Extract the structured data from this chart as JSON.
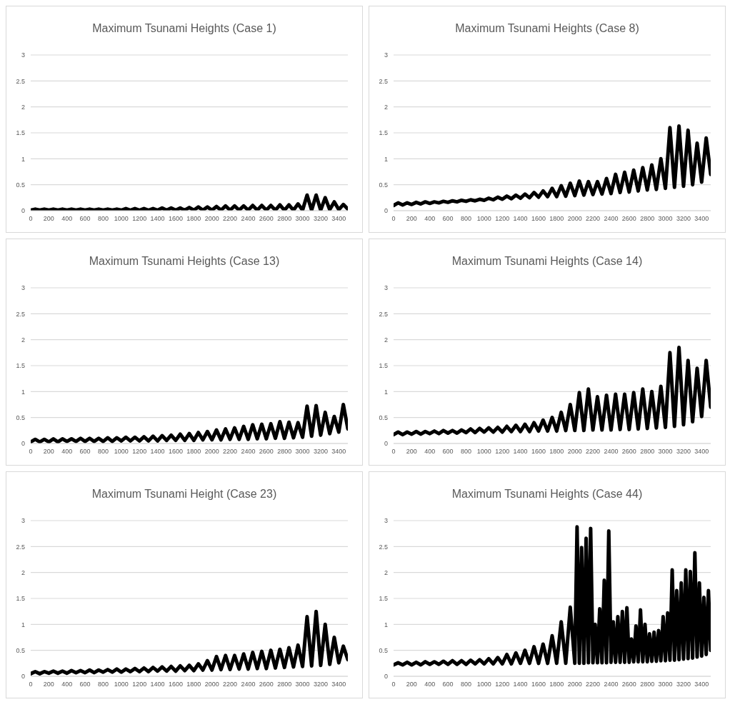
{
  "chart_data": [
    {
      "type": "line",
      "title": "Maximum Tsunami Heights (Case 1)",
      "grid": "y",
      "xlim": [
        0,
        3500
      ],
      "xticks": [
        0,
        200,
        400,
        600,
        800,
        1000,
        1200,
        1400,
        1600,
        1800,
        2000,
        2200,
        2400,
        2600,
        2800,
        3000,
        3200,
        3400
      ],
      "ylim": [
        0,
        3
      ],
      "yticks": [
        0,
        0.5,
        1,
        1.5,
        2,
        2.5,
        3
      ],
      "x": [
        0,
        50,
        100,
        150,
        200,
        250,
        300,
        350,
        400,
        450,
        500,
        550,
        600,
        650,
        700,
        750,
        800,
        850,
        900,
        950,
        1000,
        1050,
        1100,
        1150,
        1200,
        1250,
        1300,
        1350,
        1400,
        1450,
        1500,
        1550,
        1600,
        1650,
        1700,
        1750,
        1800,
        1850,
        1900,
        1950,
        2000,
        2050,
        2100,
        2150,
        2200,
        2250,
        2300,
        2350,
        2400,
        2450,
        2500,
        2550,
        2600,
        2650,
        2700,
        2750,
        2800,
        2850,
        2900,
        2950,
        3000,
        3050,
        3100,
        3150,
        3200,
        3250,
        3300,
        3350,
        3400,
        3450,
        3500
      ],
      "series": [
        {
          "color": "#000000",
          "values": [
            0.01,
            0.03,
            0.01,
            0.03,
            0.01,
            0.03,
            0.01,
            0.03,
            0.01,
            0.03,
            0.01,
            0.03,
            0.01,
            0.03,
            0.01,
            0.03,
            0.01,
            0.03,
            0.01,
            0.03,
            0.01,
            0.04,
            0.01,
            0.04,
            0.01,
            0.04,
            0.01,
            0.04,
            0.01,
            0.05,
            0.01,
            0.05,
            0.01,
            0.05,
            0.01,
            0.06,
            0.01,
            0.07,
            0.01,
            0.07,
            0.01,
            0.08,
            0.01,
            0.09,
            0.01,
            0.09,
            0.01,
            0.09,
            0.01,
            0.1,
            0.01,
            0.1,
            0.01,
            0.1,
            0.01,
            0.11,
            0.01,
            0.11,
            0.01,
            0.13,
            0.01,
            0.3,
            0.01,
            0.3,
            0.01,
            0.25,
            0.02,
            0.17,
            0.02,
            0.12,
            0.03
          ]
        }
      ]
    },
    {
      "type": "line",
      "title": "Maximum Tsunami Heights (Case 8)",
      "grid": "y",
      "xlim": [
        0,
        3500
      ],
      "xticks": [
        0,
        200,
        400,
        600,
        800,
        1000,
        1200,
        1400,
        1600,
        1800,
        2000,
        2200,
        2400,
        2600,
        2800,
        3000,
        3200,
        3400
      ],
      "ylim": [
        0,
        3
      ],
      "yticks": [
        0,
        0.5,
        1,
        1.5,
        2,
        2.5,
        3
      ],
      "x": [
        0,
        50,
        100,
        150,
        200,
        250,
        300,
        350,
        400,
        450,
        500,
        550,
        600,
        650,
        700,
        750,
        800,
        850,
        900,
        950,
        1000,
        1050,
        1100,
        1150,
        1200,
        1250,
        1300,
        1350,
        1400,
        1450,
        1500,
        1550,
        1600,
        1650,
        1700,
        1750,
        1800,
        1850,
        1900,
        1950,
        2000,
        2050,
        2100,
        2150,
        2200,
        2250,
        2300,
        2350,
        2400,
        2450,
        2500,
        2550,
        2600,
        2650,
        2700,
        2750,
        2800,
        2850,
        2900,
        2950,
        3000,
        3050,
        3100,
        3150,
        3200,
        3250,
        3300,
        3350,
        3400,
        3450,
        3500
      ],
      "series": [
        {
          "color": "#000000",
          "values": [
            0.1,
            0.15,
            0.11,
            0.15,
            0.12,
            0.16,
            0.13,
            0.17,
            0.14,
            0.17,
            0.15,
            0.18,
            0.16,
            0.19,
            0.17,
            0.2,
            0.18,
            0.21,
            0.19,
            0.22,
            0.2,
            0.24,
            0.21,
            0.26,
            0.22,
            0.28,
            0.23,
            0.3,
            0.24,
            0.32,
            0.25,
            0.35,
            0.26,
            0.38,
            0.27,
            0.43,
            0.27,
            0.48,
            0.28,
            0.53,
            0.29,
            0.57,
            0.3,
            0.56,
            0.31,
            0.56,
            0.32,
            0.62,
            0.33,
            0.7,
            0.35,
            0.74,
            0.36,
            0.78,
            0.38,
            0.83,
            0.4,
            0.88,
            0.41,
            1.0,
            0.43,
            1.6,
            0.45,
            1.63,
            0.47,
            1.55,
            0.5,
            1.3,
            0.55,
            1.4,
            0.7
          ]
        }
      ]
    },
    {
      "type": "line",
      "title": "Maximum Tsunami Heights (Case 13)",
      "grid": "y",
      "xlim": [
        0,
        3500
      ],
      "xticks": [
        0,
        200,
        400,
        600,
        800,
        1000,
        1200,
        1400,
        1600,
        1800,
        2000,
        2200,
        2400,
        2600,
        2800,
        3000,
        3200,
        3400
      ],
      "ylim": [
        0,
        3
      ],
      "yticks": [
        0,
        0.5,
        1,
        1.5,
        2,
        2.5,
        3
      ],
      "x": [
        0,
        50,
        100,
        150,
        200,
        250,
        300,
        350,
        400,
        450,
        500,
        550,
        600,
        650,
        700,
        750,
        800,
        850,
        900,
        950,
        1000,
        1050,
        1100,
        1150,
        1200,
        1250,
        1300,
        1350,
        1400,
        1450,
        1500,
        1550,
        1600,
        1650,
        1700,
        1750,
        1800,
        1850,
        1900,
        1950,
        2000,
        2050,
        2100,
        2150,
        2200,
        2250,
        2300,
        2350,
        2400,
        2450,
        2500,
        2550,
        2600,
        2650,
        2700,
        2750,
        2800,
        2850,
        2900,
        2950,
        3000,
        3050,
        3100,
        3150,
        3200,
        3250,
        3300,
        3350,
        3400,
        3450,
        3500
      ],
      "series": [
        {
          "color": "#000000",
          "values": [
            0.03,
            0.08,
            0.03,
            0.08,
            0.03,
            0.09,
            0.03,
            0.09,
            0.04,
            0.09,
            0.04,
            0.1,
            0.04,
            0.1,
            0.04,
            0.1,
            0.04,
            0.11,
            0.04,
            0.11,
            0.05,
            0.12,
            0.05,
            0.12,
            0.05,
            0.13,
            0.05,
            0.14,
            0.05,
            0.15,
            0.06,
            0.16,
            0.06,
            0.18,
            0.06,
            0.19,
            0.06,
            0.21,
            0.07,
            0.23,
            0.07,
            0.26,
            0.07,
            0.28,
            0.08,
            0.3,
            0.08,
            0.33,
            0.08,
            0.36,
            0.09,
            0.37,
            0.09,
            0.38,
            0.1,
            0.42,
            0.1,
            0.41,
            0.11,
            0.4,
            0.12,
            0.72,
            0.14,
            0.73,
            0.16,
            0.6,
            0.19,
            0.52,
            0.22,
            0.75,
            0.28
          ]
        }
      ]
    },
    {
      "type": "line",
      "title": "Maximum Tsunami Heights (Case 14)",
      "grid": "y",
      "xlim": [
        0,
        3500
      ],
      "xticks": [
        0,
        200,
        400,
        600,
        800,
        1000,
        1200,
        1400,
        1600,
        1800,
        2000,
        2200,
        2400,
        2600,
        2800,
        3000,
        3200,
        3400
      ],
      "ylim": [
        0,
        3
      ],
      "yticks": [
        0,
        0.5,
        1,
        1.5,
        2,
        2.5,
        3
      ],
      "x": [
        0,
        50,
        100,
        150,
        200,
        250,
        300,
        350,
        400,
        450,
        500,
        550,
        600,
        650,
        700,
        750,
        800,
        850,
        900,
        950,
        1000,
        1050,
        1100,
        1150,
        1200,
        1250,
        1300,
        1350,
        1400,
        1450,
        1500,
        1550,
        1600,
        1650,
        1700,
        1750,
        1800,
        1850,
        1900,
        1950,
        2000,
        2050,
        2100,
        2150,
        2200,
        2250,
        2300,
        2350,
        2400,
        2450,
        2500,
        2550,
        2600,
        2650,
        2700,
        2750,
        2800,
        2850,
        2900,
        2950,
        3000,
        3050,
        3100,
        3150,
        3200,
        3250,
        3300,
        3350,
        3400,
        3450,
        3500
      ],
      "series": [
        {
          "color": "#000000",
          "values": [
            0.17,
            0.22,
            0.17,
            0.22,
            0.18,
            0.23,
            0.18,
            0.23,
            0.19,
            0.24,
            0.19,
            0.25,
            0.2,
            0.25,
            0.2,
            0.26,
            0.21,
            0.28,
            0.21,
            0.29,
            0.22,
            0.3,
            0.22,
            0.31,
            0.22,
            0.33,
            0.23,
            0.35,
            0.23,
            0.37,
            0.23,
            0.4,
            0.24,
            0.45,
            0.24,
            0.5,
            0.24,
            0.6,
            0.25,
            0.75,
            0.25,
            0.98,
            0.25,
            1.05,
            0.26,
            0.9,
            0.26,
            0.93,
            0.26,
            0.95,
            0.27,
            0.95,
            0.27,
            0.98,
            0.28,
            1.05,
            0.29,
            1.0,
            0.3,
            1.1,
            0.31,
            1.75,
            0.33,
            1.85,
            0.36,
            1.6,
            0.42,
            1.45,
            0.52,
            1.6,
            0.7
          ]
        }
      ]
    },
    {
      "type": "line",
      "title": "Maximum Tsunami Height (Case 23)",
      "grid": "y",
      "xlim": [
        0,
        3500
      ],
      "xticks": [
        0,
        200,
        400,
        600,
        800,
        1000,
        1200,
        1400,
        1600,
        1800,
        2000,
        2200,
        2400,
        2600,
        2800,
        3000,
        3200,
        3400
      ],
      "ylim": [
        0,
        3
      ],
      "yticks": [
        0,
        0.5,
        1,
        1.5,
        2,
        2.5,
        3
      ],
      "x": [
        0,
        50,
        100,
        150,
        200,
        250,
        300,
        350,
        400,
        450,
        500,
        550,
        600,
        650,
        700,
        750,
        800,
        850,
        900,
        950,
        1000,
        1050,
        1100,
        1150,
        1200,
        1250,
        1300,
        1350,
        1400,
        1450,
        1500,
        1550,
        1600,
        1650,
        1700,
        1750,
        1800,
        1850,
        1900,
        1950,
        2000,
        2050,
        2100,
        2150,
        2200,
        2250,
        2300,
        2350,
        2400,
        2450,
        2500,
        2550,
        2600,
        2650,
        2700,
        2750,
        2800,
        2850,
        2900,
        2950,
        3000,
        3050,
        3100,
        3150,
        3200,
        3250,
        3300,
        3350,
        3400,
        3450,
        3500
      ],
      "series": [
        {
          "color": "#000000",
          "values": [
            0.05,
            0.09,
            0.05,
            0.09,
            0.06,
            0.1,
            0.06,
            0.1,
            0.06,
            0.11,
            0.07,
            0.11,
            0.07,
            0.12,
            0.07,
            0.12,
            0.08,
            0.13,
            0.08,
            0.14,
            0.08,
            0.14,
            0.09,
            0.15,
            0.09,
            0.16,
            0.09,
            0.17,
            0.1,
            0.18,
            0.1,
            0.19,
            0.1,
            0.2,
            0.11,
            0.21,
            0.11,
            0.24,
            0.12,
            0.3,
            0.12,
            0.38,
            0.13,
            0.4,
            0.13,
            0.4,
            0.14,
            0.43,
            0.14,
            0.46,
            0.15,
            0.48,
            0.15,
            0.5,
            0.16,
            0.52,
            0.17,
            0.55,
            0.18,
            0.6,
            0.19,
            1.15,
            0.2,
            1.25,
            0.21,
            1.0,
            0.23,
            0.75,
            0.26,
            0.58,
            0.32
          ]
        }
      ]
    },
    {
      "type": "line",
      "title": "Maximum Tsunami Heights (Case 44)",
      "grid": "y",
      "xlim": [
        0,
        3500
      ],
      "xticks": [
        0,
        200,
        400,
        600,
        800,
        1000,
        1200,
        1400,
        1600,
        1800,
        2000,
        2200,
        2400,
        2600,
        2800,
        3000,
        3200,
        3400
      ],
      "ylim": [
        0,
        3
      ],
      "yticks": [
        0,
        0.5,
        1,
        1.5,
        2,
        2.5,
        3
      ],
      "x": [
        0,
        50,
        100,
        150,
        200,
        250,
        300,
        350,
        400,
        450,
        500,
        550,
        600,
        650,
        700,
        750,
        800,
        850,
        900,
        950,
        1000,
        1050,
        1100,
        1150,
        1200,
        1250,
        1300,
        1350,
        1400,
        1450,
        1500,
        1550,
        1600,
        1650,
        1700,
        1750,
        1800,
        1850,
        1900,
        1950,
        2000,
        2025,
        2050,
        2075,
        2100,
        2125,
        2150,
        2175,
        2200,
        2225,
        2250,
        2275,
        2300,
        2325,
        2350,
        2375,
        2400,
        2425,
        2450,
        2475,
        2500,
        2525,
        2550,
        2575,
        2600,
        2625,
        2650,
        2675,
        2700,
        2725,
        2750,
        2775,
        2800,
        2825,
        2850,
        2875,
        2900,
        2925,
        2950,
        2975,
        3000,
        3025,
        3050,
        3075,
        3100,
        3125,
        3150,
        3175,
        3200,
        3225,
        3250,
        3275,
        3300,
        3325,
        3350,
        3375,
        3400,
        3425,
        3450,
        3475,
        3500
      ],
      "series": [
        {
          "color": "#000000",
          "values": [
            0.22,
            0.26,
            0.22,
            0.27,
            0.22,
            0.27,
            0.22,
            0.28,
            0.23,
            0.28,
            0.23,
            0.29,
            0.23,
            0.3,
            0.23,
            0.3,
            0.23,
            0.31,
            0.24,
            0.32,
            0.24,
            0.34,
            0.24,
            0.36,
            0.24,
            0.42,
            0.24,
            0.45,
            0.25,
            0.5,
            0.25,
            0.57,
            0.25,
            0.62,
            0.25,
            0.78,
            0.25,
            1.05,
            0.25,
            1.33,
            0.25,
            2.88,
            0.25,
            2.48,
            0.25,
            2.66,
            0.26,
            2.85,
            0.26,
            1.0,
            0.26,
            1.3,
            0.26,
            1.85,
            0.26,
            2.8,
            0.27,
            1.05,
            0.27,
            1.15,
            0.27,
            1.25,
            0.27,
            1.32,
            0.27,
            0.72,
            0.28,
            0.97,
            0.28,
            1.28,
            0.28,
            1.0,
            0.28,
            0.82,
            0.29,
            0.85,
            0.29,
            0.88,
            0.3,
            1.15,
            0.3,
            1.22,
            0.31,
            2.05,
            0.31,
            1.65,
            0.32,
            1.8,
            0.33,
            2.05,
            0.34,
            2.02,
            0.35,
            2.38,
            0.37,
            1.8,
            0.39,
            1.52,
            0.42,
            1.65,
            0.5
          ]
        }
      ]
    }
  ]
}
